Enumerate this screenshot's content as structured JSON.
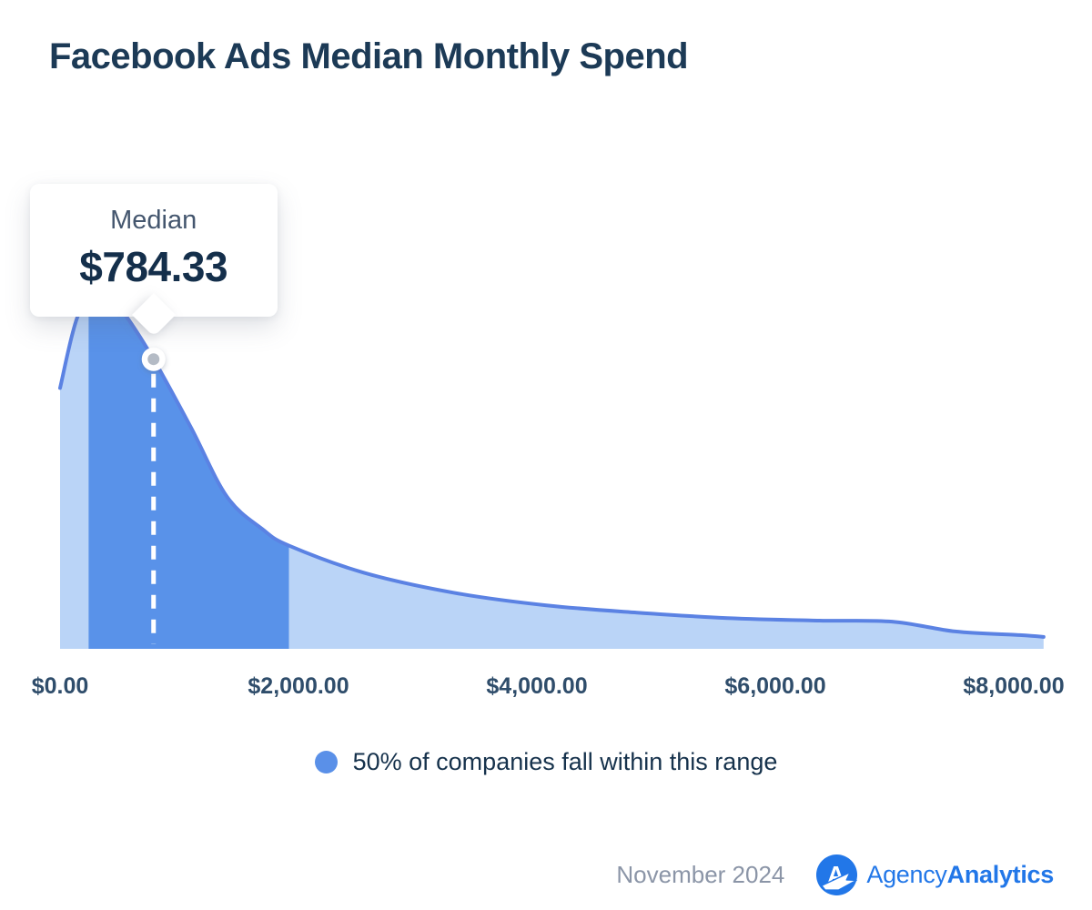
{
  "page": {
    "title": "Facebook Ads Median Monthly Spend"
  },
  "tooltip": {
    "label": "Median",
    "value": "$784.33"
  },
  "legend": {
    "label": "50% of companies fall within this range"
  },
  "footer": {
    "date": "November 2024",
    "brand_regular": "Agency",
    "brand_bold": "Analytics"
  },
  "colors": {
    "area_light": "#bad4f7",
    "area_dark": "#5992e9",
    "line": "#5b82e3",
    "median_dash": "#ffffff",
    "marker_fill": "#ffffff",
    "marker_inner": "#b4bbc5",
    "title_text": "#1c3a56",
    "axis_label": "#2f4d6b",
    "legend_text": "#16324c",
    "legend_dot": "#5a90e8",
    "footer_date": "#8b95a7",
    "brand_blue": "#2277e8",
    "tooltip_label": "#44566e",
    "tooltip_value": "#142f4b"
  },
  "chart_data": {
    "type": "area",
    "title": "Facebook Ads Median Monthly Spend",
    "xlabel": "",
    "ylabel": "",
    "grid": false,
    "legend_position": "bottom-center",
    "legend": "50% of companies fall within this range",
    "x_ticks": [
      {
        "value": 0,
        "label": "$0.00"
      },
      {
        "value": 2000,
        "label": "$2,000.00"
      },
      {
        "value": 4000,
        "label": "$4,000.00"
      },
      {
        "value": 6000,
        "label": "$6,000.00"
      },
      {
        "value": 8000,
        "label": "$8,000.00"
      }
    ],
    "xlim": [
      0,
      8250
    ],
    "median_value": 784.33,
    "median_label": "$784.33",
    "highlight_range": [
      240,
      1920
    ],
    "highlight_meaning": "50% of companies fall within this range",
    "y_units": "relative density (0 = baseline, 1 = peak; estimated from pixels)",
    "curve": [
      {
        "x": 0,
        "y": 0.72
      },
      {
        "x": 150,
        "y": 0.92
      },
      {
        "x": 340,
        "y": 1.0
      },
      {
        "x": 530,
        "y": 0.93
      },
      {
        "x": 784,
        "y": 0.8
      },
      {
        "x": 1100,
        "y": 0.61
      },
      {
        "x": 1400,
        "y": 0.42
      },
      {
        "x": 1700,
        "y": 0.33
      },
      {
        "x": 1920,
        "y": 0.285
      },
      {
        "x": 2550,
        "y": 0.21
      },
      {
        "x": 3300,
        "y": 0.155
      },
      {
        "x": 4080,
        "y": 0.12
      },
      {
        "x": 4840,
        "y": 0.1
      },
      {
        "x": 5600,
        "y": 0.085
      },
      {
        "x": 6370,
        "y": 0.078
      },
      {
        "x": 6980,
        "y": 0.075
      },
      {
        "x": 7510,
        "y": 0.048
      },
      {
        "x": 8050,
        "y": 0.038
      },
      {
        "x": 8250,
        "y": 0.033
      }
    ]
  }
}
